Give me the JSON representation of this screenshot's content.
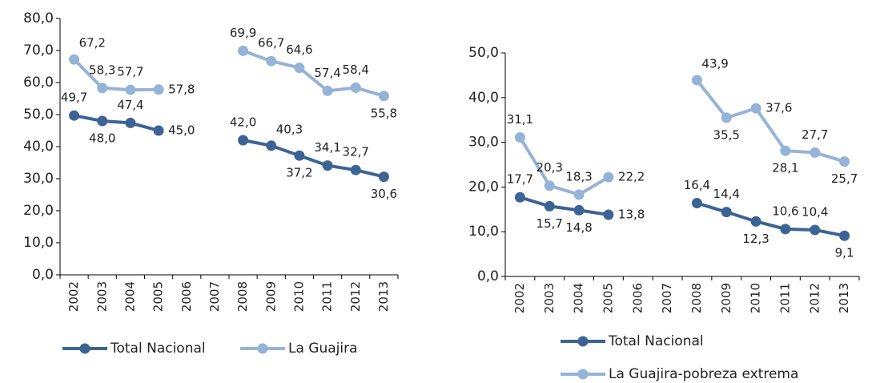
{
  "chart_data": [
    {
      "type": "line",
      "categories": [
        "2002",
        "2003",
        "2004",
        "2005",
        "2006",
        "2007",
        "2008",
        "2009",
        "2010",
        "2011",
        "2012",
        "2013"
      ],
      "series": [
        {
          "name": "Total Nacional",
          "color": "#3b6495",
          "values": [
            49.7,
            48.0,
            47.4,
            45.0,
            null,
            null,
            42.0,
            40.3,
            37.2,
            34.1,
            32.7,
            30.6
          ],
          "value_labels": [
            "49,7",
            "48,0",
            "47,4",
            "45,0",
            null,
            null,
            "42,0",
            "40,3",
            "37,2",
            "34,1",
            "32,7",
            "30,6"
          ]
        },
        {
          "name": "La Guajira",
          "color": "#95b3d7",
          "values": [
            67.2,
            58.3,
            57.7,
            57.8,
            null,
            null,
            69.9,
            66.7,
            64.6,
            57.4,
            58.4,
            55.8
          ],
          "value_labels": [
            "67,2",
            "58,3",
            "57,7",
            "57,8",
            null,
            null,
            "69,9",
            "66,7",
            "64,6",
            "57,4",
            "58,4",
            "55,8"
          ]
        }
      ],
      "ylim": [
        0,
        80
      ],
      "yticks": [
        {
          "value": 0,
          "label": "0,0"
        },
        {
          "value": 10,
          "label": "10,0"
        },
        {
          "value": 20,
          "label": "20,0"
        },
        {
          "value": 30,
          "label": "30,0"
        },
        {
          "value": 40,
          "label": "40,0"
        },
        {
          "value": 50,
          "label": "50,0"
        },
        {
          "value": 60,
          "label": "60,0"
        },
        {
          "value": 70,
          "label": "70,0"
        },
        {
          "value": 80,
          "label": "80,0"
        }
      ],
      "legend": "bottom"
    },
    {
      "type": "line",
      "categories": [
        "2002",
        "2003",
        "2004",
        "2005",
        "2006",
        "2007",
        "2008",
        "2009",
        "2010",
        "2011",
        "2012",
        "2013"
      ],
      "series": [
        {
          "name": "Total Nacional",
          "color": "#3b6495",
          "values": [
            17.7,
            15.7,
            14.8,
            13.8,
            null,
            null,
            16.4,
            14.4,
            12.3,
            10.6,
            10.4,
            9.1
          ],
          "value_labels": [
            "17,7",
            "15,7",
            "14,8",
            "13,8",
            null,
            null,
            "16,4",
            "14,4",
            "12,3",
            "10,6",
            "10,4",
            "9,1"
          ]
        },
        {
          "name": "La Guajira-pobreza extrema",
          "color": "#95b3d7",
          "values": [
            31.1,
            20.3,
            18.3,
            22.2,
            null,
            null,
            43.9,
            35.5,
            37.6,
            28.1,
            27.7,
            25.7
          ],
          "value_labels": [
            "31,1",
            "20,3",
            "18,3",
            "22,2",
            null,
            null,
            "43,9",
            "35,5",
            "37,6",
            "28,1",
            "27,7",
            "25,7"
          ]
        }
      ],
      "ylim": [
        0,
        50
      ],
      "yticks": [
        {
          "value": 0,
          "label": "0,0"
        },
        {
          "value": 10,
          "label": "10,0"
        },
        {
          "value": 20,
          "label": "20,0"
        },
        {
          "value": 30,
          "label": "30,0"
        },
        {
          "value": 40,
          "label": "40,0"
        },
        {
          "value": 50,
          "label": "50,0"
        }
      ],
      "legend": "bottom"
    }
  ]
}
